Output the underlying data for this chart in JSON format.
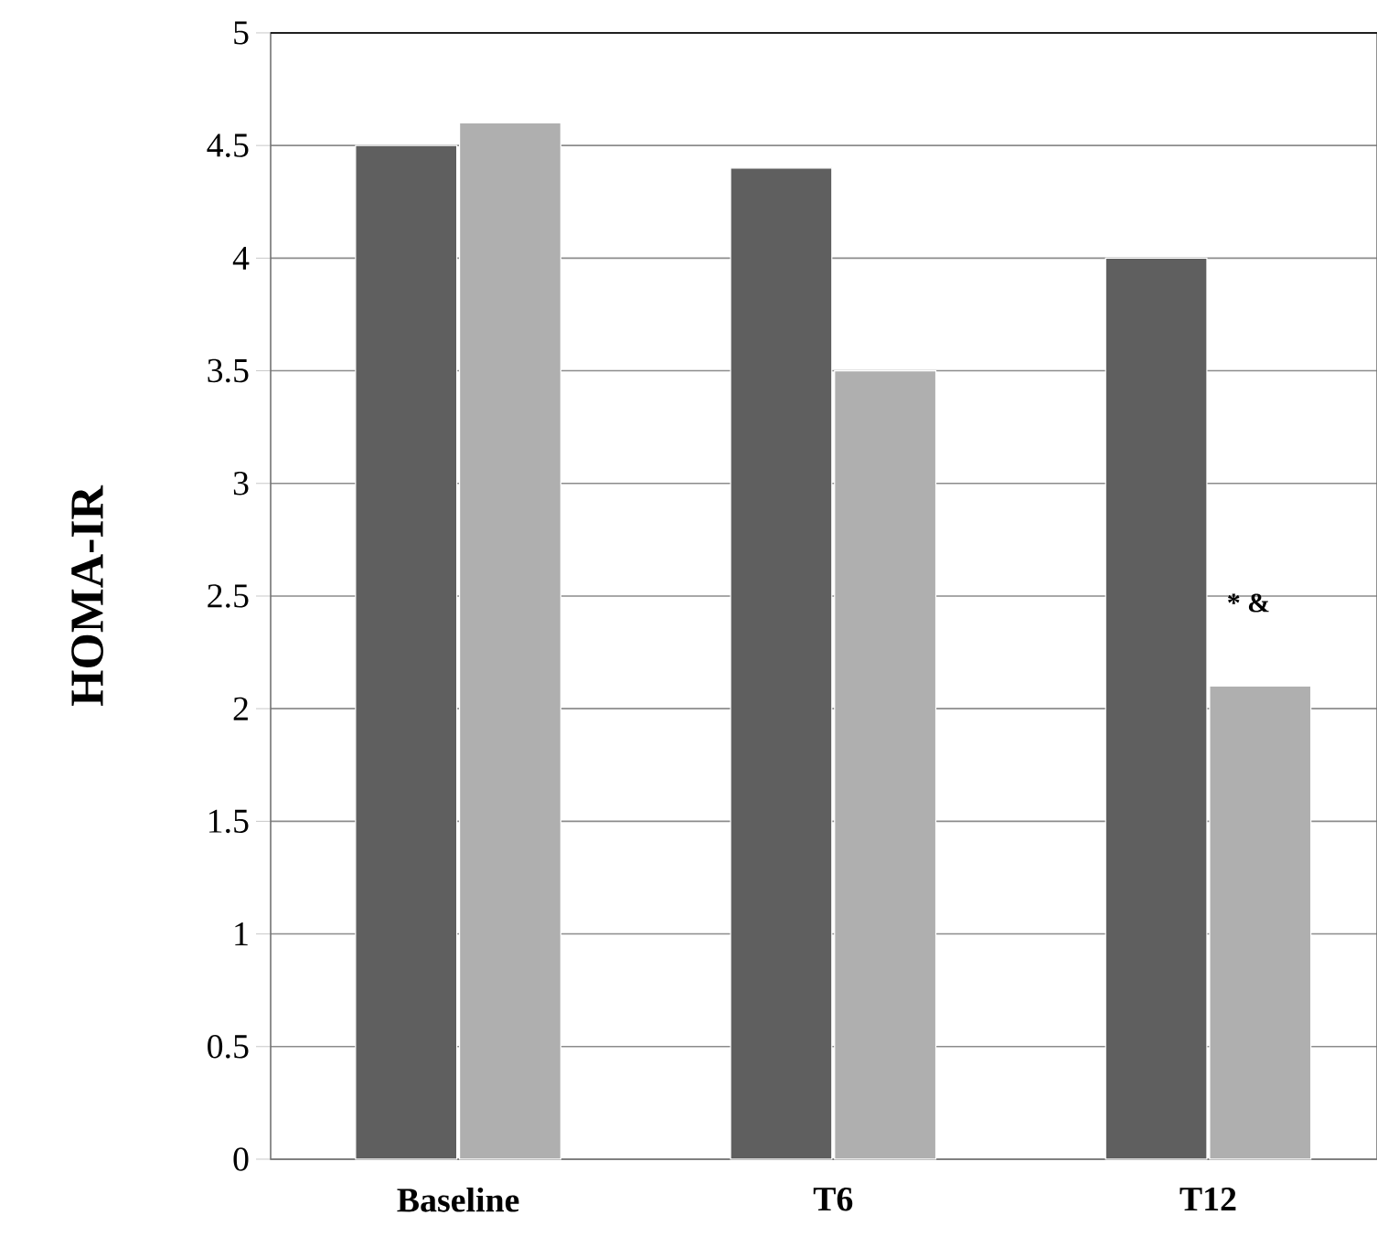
{
  "chart_data": {
    "type": "bar",
    "ylabel": "HOMA-IR",
    "categories": [
      "Baseline",
      "T6",
      "T12"
    ],
    "series": [
      {
        "color": "#5f5f5f",
        "values": [
          4.5,
          4.4,
          4.0
        ]
      },
      {
        "color": "#afafaf",
        "values": [
          4.6,
          3.5,
          2.1
        ]
      }
    ],
    "ylim": [
      0,
      5
    ],
    "yticks": [
      0,
      0.5,
      1,
      1.5,
      2,
      2.5,
      3,
      3.5,
      4,
      4.5,
      5
    ],
    "grid": "y",
    "annotations": [
      {
        "text": "* &",
        "x": "T12",
        "y": 2.4
      }
    ]
  }
}
